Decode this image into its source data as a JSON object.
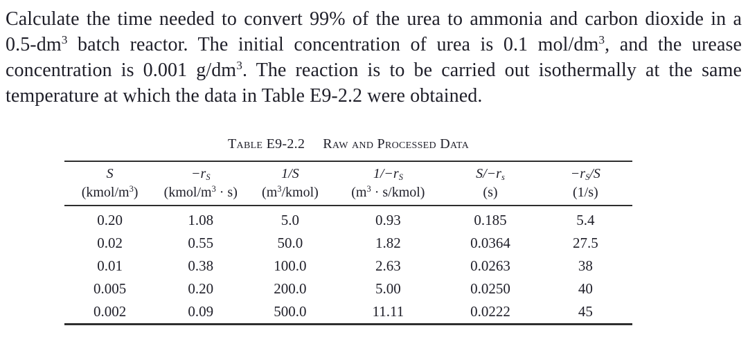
{
  "page": {
    "background_color": "#ffffff",
    "text_color": "#1e1e28",
    "rule_color": "#2e2e2e"
  },
  "problem": {
    "segments": [
      {
        "t": "Calculate the time needed to convert 99% of the urea to ammonia and carbon dioxide in a 0.5-dm"
      },
      {
        "t": "3",
        "sup": true
      },
      {
        "t": " batch reactor. The initial concentration of urea is 0.1 mol/dm"
      },
      {
        "t": "3",
        "sup": true
      },
      {
        "t": ", and the urease concentration is 0.001 g/dm"
      },
      {
        "t": "3",
        "sup": true
      },
      {
        "t": ". The reaction is to be carried out isothermally at the same temperature at which the data in Table E9-2.2 were obtained."
      }
    ]
  },
  "table": {
    "title": {
      "label": "Table E9-2.2",
      "caption": "Raw and Processed Data"
    },
    "columns": [
      {
        "symbol": [
          {
            "t": "S",
            "i": true
          }
        ],
        "unit": [
          {
            "t": "(kmol/m"
          },
          {
            "t": "3",
            "sup": true
          },
          {
            "t": ")"
          }
        ]
      },
      {
        "symbol": [
          {
            "t": "−r",
            "i": true
          },
          {
            "t": "S",
            "sub": true,
            "i": true
          }
        ],
        "unit": [
          {
            "t": "(kmol/m"
          },
          {
            "t": "3",
            "sup": true
          },
          {
            "t": " · s)"
          }
        ]
      },
      {
        "symbol": [
          {
            "t": "1/S",
            "i": true
          }
        ],
        "unit": [
          {
            "t": "(m"
          },
          {
            "t": "3",
            "sup": true
          },
          {
            "t": "/kmol)"
          }
        ]
      },
      {
        "symbol": [
          {
            "t": "1/−r",
            "i": true
          },
          {
            "t": "S",
            "sub": true,
            "i": true
          }
        ],
        "unit": [
          {
            "t": "(m"
          },
          {
            "t": "3",
            "sup": true
          },
          {
            "t": " · s/kmol)"
          }
        ]
      },
      {
        "symbol": [
          {
            "t": "S/−r",
            "i": true
          },
          {
            "t": "s",
            "sub": true,
            "i": true
          }
        ],
        "unit": [
          {
            "t": "(s)"
          }
        ]
      },
      {
        "symbol": [
          {
            "t": "−r",
            "i": true
          },
          {
            "t": "S",
            "sub": true,
            "i": true
          },
          {
            "t": "/S",
            "i": true
          }
        ],
        "unit": [
          {
            "t": "(1/s)"
          }
        ]
      }
    ],
    "rows": [
      [
        "0.20",
        "1.08",
        "5.0",
        "0.93",
        "0.185",
        "5.4"
      ],
      [
        "0.02",
        "0.55",
        "50.0",
        "1.82",
        "0.0364",
        "27.5"
      ],
      [
        "0.01",
        "0.38",
        "100.0",
        "2.63",
        "0.0263",
        "38"
      ],
      [
        "0.005",
        "0.20",
        "200.0",
        "5.00",
        "0.0250",
        "40"
      ],
      [
        "0.002",
        "0.09",
        "500.0",
        "11.11",
        "0.0222",
        "45"
      ]
    ]
  }
}
